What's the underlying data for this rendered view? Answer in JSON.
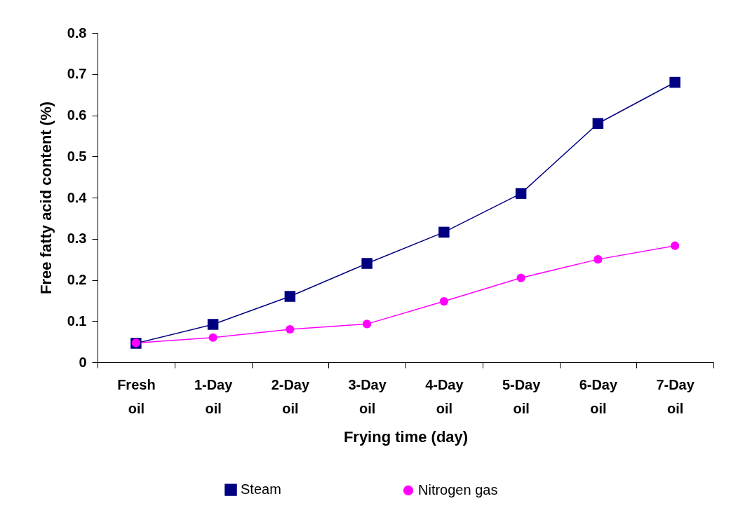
{
  "chart_data": {
    "type": "line",
    "xlabel": "Frying time (day)",
    "ylabel": "Free fatty acid content (%)",
    "categories": [
      "Fresh oil",
      "1-Day oil",
      "2-Day oil",
      "3-Day oil",
      "4-Day oil",
      "5-Day oil",
      "6-Day oil",
      "7-Day oil"
    ],
    "series": [
      {
        "name": "Steam",
        "color": "#000080",
        "marker": "square",
        "values": [
          0.046,
          0.092,
          0.16,
          0.24,
          0.316,
          0.41,
          0.58,
          0.68
        ],
        "errors": [
          null,
          0.004,
          0.004,
          0.004,
          0.004,
          0.005,
          0.005,
          0.006
        ]
      },
      {
        "name": "Nitrogen gas",
        "color": "#ff00ff",
        "marker": "circle",
        "values": [
          0.047,
          0.06,
          0.08,
          0.093,
          0.148,
          0.205,
          0.25,
          0.283
        ],
        "errors": [
          null,
          0.004,
          0.004,
          0.004,
          0.004,
          0.005,
          0.006,
          0.008
        ]
      }
    ],
    "ylim": [
      0,
      0.8
    ],
    "yticks": [
      0,
      0.1,
      0.2,
      0.3,
      0.4,
      0.5,
      0.6,
      0.7,
      0.8
    ],
    "grid": false,
    "legend": "bottom",
    "line_style": "solid"
  }
}
